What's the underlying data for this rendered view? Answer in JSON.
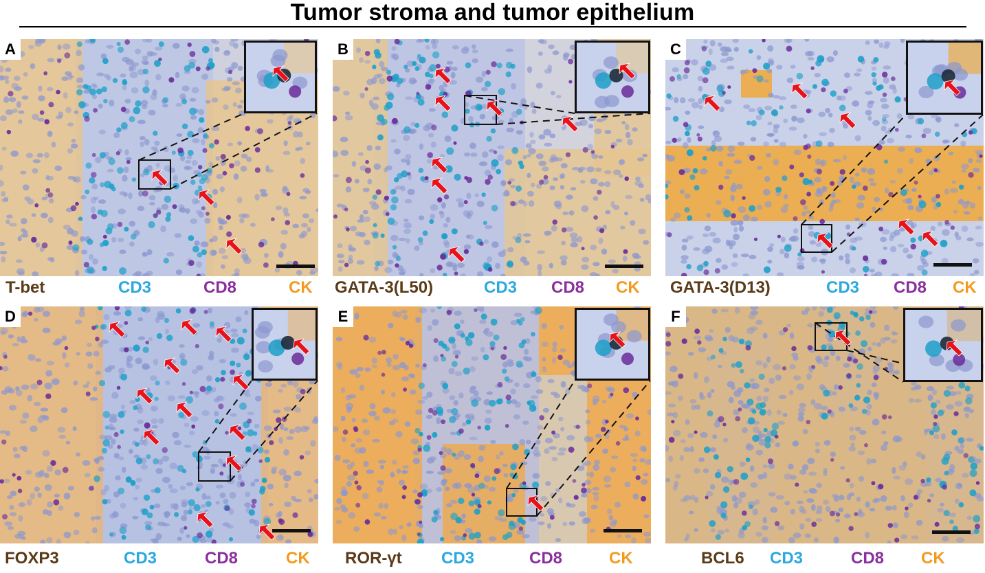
{
  "figure": {
    "title": "Tumor stroma and tumor epithelium"
  },
  "panels": [
    {
      "letter": "A",
      "marker": "T-bet",
      "cd3": "CD3",
      "cd8": "CD8",
      "ck": "CK",
      "base": "#cfd2de",
      "tumor_tone": "#e9c48a",
      "stroma_tone": "#b8c4e6"
    },
    {
      "letter": "B",
      "marker": "GATA-3(L50)",
      "cd3": "CD3",
      "cd8": "CD8",
      "ck": "CK",
      "base": "#d3d3dd",
      "tumor_tone": "#e6c690",
      "stroma_tone": "#b7c2e4"
    },
    {
      "letter": "C",
      "marker": "GATA-3(D13)",
      "cd3": "CD3",
      "cd8": "CD8",
      "ck": "CK",
      "base": "#d6dbe8",
      "tumor_tone": "#f2a52c",
      "stroma_tone": "#c6cfe9"
    },
    {
      "letter": "D",
      "marker": "FOXP3",
      "cd3": "CD3",
      "cd8": "CD8",
      "ck": "CK",
      "base": "#d2cfdc",
      "tumor_tone": "#e8b470",
      "stroma_tone": "#aebde6"
    },
    {
      "letter": "E",
      "marker": "ROR-γt",
      "cd3": "CD3",
      "cd8": "CD8",
      "ck": "CK",
      "base": "#d9c8b0",
      "tumor_tone": "#f0a848",
      "stroma_tone": "#b5bde2"
    },
    {
      "letter": "F",
      "marker": "BCL6",
      "cd3": "CD3",
      "cd8": "CD8",
      "ck": "CK",
      "base": "#d8cdb6",
      "tumor_tone": "#d9b27a",
      "stroma_tone": "#c2cbe6"
    }
  ],
  "colors": {
    "marker_text": "#5a3a17",
    "cd3_text": "#2aa8e0",
    "cd8_text": "#8a2f9c",
    "ck_text": "#f39a1e",
    "arrow": "#e8121b",
    "cd3_cell": "#1fa0c8",
    "cd8_cell": "#6a2c9a",
    "nucleus": "#8b97cf"
  }
}
